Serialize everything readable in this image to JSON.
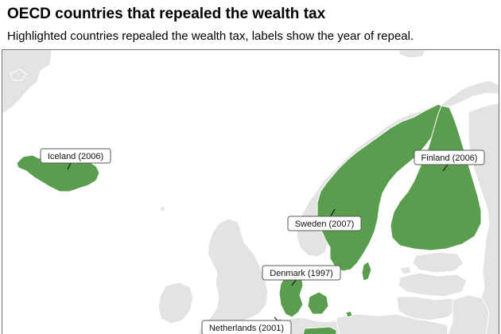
{
  "title": "OECD countries that repealed the wealth tax",
  "subtitle": "Highlighted countries repealed the wealth tax, labels show the year of repeal.",
  "colors": {
    "highlight": "#5b9d4f",
    "land": "#e3e3e3",
    "water": "#ffffff",
    "border": "#ffffff",
    "label_border": "#5a5a5a"
  },
  "labels": {
    "iceland": "Iceland (2006)",
    "finland": "Finland (2006)",
    "sweden": "Sweden (2007)",
    "denmark": "Denmark (1997)",
    "netherlands": "Netherlands (2001)"
  }
}
